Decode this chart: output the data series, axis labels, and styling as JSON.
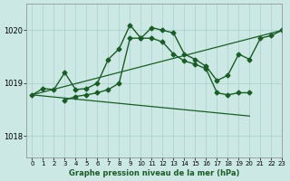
{
  "title": "Graphe pression niveau de la mer (hPa)",
  "bg_color": "#cce8e4",
  "grid_color": "#a8d0cb",
  "line_color": "#1a5c28",
  "xlim": [
    -0.5,
    23
  ],
  "ylim": [
    1017.6,
    1020.5
  ],
  "yticks": [
    1018,
    1019,
    1020
  ],
  "xticks": [
    0,
    1,
    2,
    3,
    4,
    5,
    6,
    7,
    8,
    9,
    10,
    11,
    12,
    13,
    14,
    15,
    16,
    17,
    18,
    19,
    20,
    21,
    22,
    23
  ],
  "series": [
    {
      "x": [
        0,
        1,
        2,
        3,
        4,
        5,
        6,
        7,
        8,
        9,
        10,
        11,
        12,
        13,
        14,
        15,
        16,
        17,
        18,
        19,
        20,
        21,
        22,
        23
      ],
      "y": [
        1018.78,
        1018.9,
        1018.88,
        1019.2,
        1018.88,
        1018.9,
        1019.0,
        1019.45,
        1019.65,
        1020.1,
        1019.85,
        1020.05,
        1020.0,
        1019.95,
        1019.55,
        1019.45,
        1019.32,
        1019.05,
        1019.15,
        1019.55,
        1019.45,
        1019.85,
        1019.9,
        1020.0
      ],
      "style": "-",
      "marker": "D",
      "markersize": 2.5,
      "linewidth": 1.0
    },
    {
      "x": [
        3,
        4,
        5,
        6,
        7,
        8,
        9,
        10,
        11,
        12,
        13,
        14,
        15,
        16,
        17,
        18,
        19,
        20
      ],
      "y": [
        1018.68,
        1018.75,
        1018.78,
        1018.82,
        1018.88,
        1019.0,
        1019.85,
        1019.85,
        1019.85,
        1019.78,
        1019.55,
        1019.42,
        1019.36,
        1019.27,
        1018.82,
        1018.78,
        1018.82,
        1018.82
      ],
      "style": "-",
      "marker": "D",
      "markersize": 2.5,
      "linewidth": 1.0
    },
    {
      "x": [
        0,
        23
      ],
      "y": [
        1018.78,
        1020.0
      ],
      "style": "-",
      "marker": null,
      "markersize": 0,
      "linewidth": 0.9
    },
    {
      "x": [
        0,
        20
      ],
      "y": [
        1018.78,
        1018.38
      ],
      "style": "-",
      "marker": null,
      "markersize": 0,
      "linewidth": 0.9
    }
  ]
}
